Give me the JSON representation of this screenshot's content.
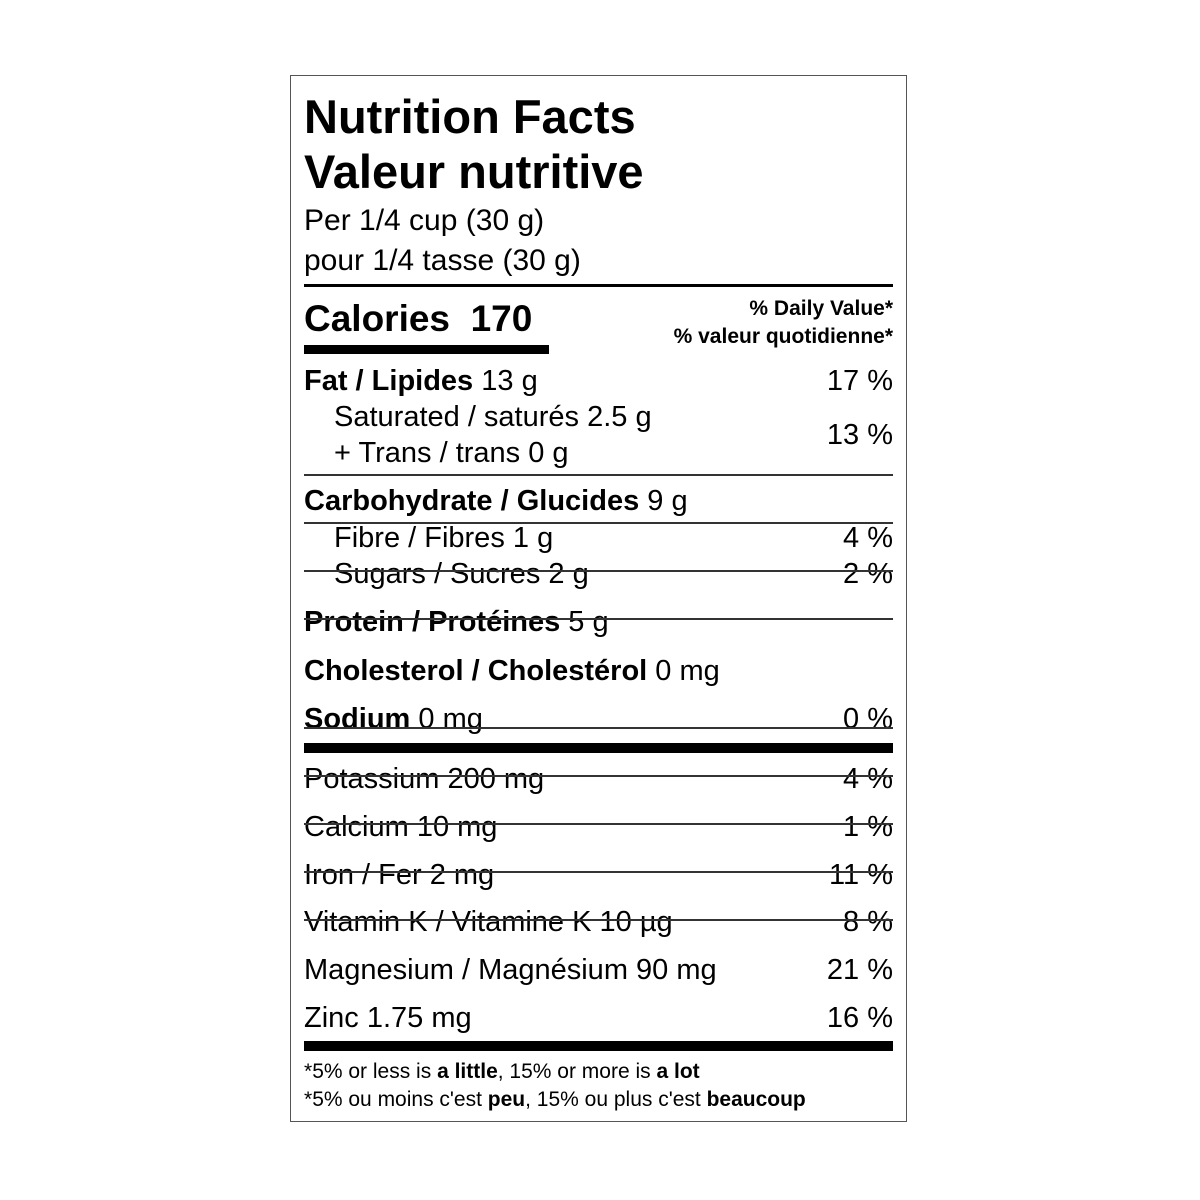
{
  "title_en": "Nutrition Facts",
  "title_fr": "Valeur nutritive",
  "serving_en": "Per 1/4 cup (30 g)",
  "serving_fr": "pour 1/4 tasse (30 g)",
  "calories_label": "Calories",
  "calories_value": "170",
  "dv_header_en": "% Daily Value*",
  "dv_header_fr": "% valeur quotidienne*",
  "fat": {
    "label": "Fat / Lipides",
    "amount": "13 g",
    "dv": "17 %"
  },
  "saturated": {
    "label": "Saturated / saturés 2.5 g"
  },
  "trans": {
    "label": "+ Trans / trans 0 g"
  },
  "sat_trans_dv": "13 %",
  "rows": [
    {
      "label": "Carbohydrate / Glucides",
      "amount": "9 g",
      "dv": "",
      "bold": true,
      "indent": false
    },
    {
      "label": "Fibre / Fibres",
      "amount": "1 g",
      "dv": "4 %",
      "bold": false,
      "indent": true
    },
    {
      "label": "Sugars / Sucres",
      "amount": "2 g",
      "dv": "2 %",
      "bold": false,
      "indent": true
    },
    {
      "label": "Protein / Protéines",
      "amount": "5 g",
      "dv": "",
      "bold": true,
      "indent": false
    },
    {
      "label": "Cholesterol / Cholestérol",
      "amount": "0 mg",
      "dv": "",
      "bold": true,
      "indent": false
    },
    {
      "label": "Sodium",
      "amount": "0 mg",
      "dv": "0 %",
      "bold": true,
      "indent": false
    },
    {
      "label": "Potassium",
      "amount": "200 mg",
      "dv": "4 %",
      "bold": false,
      "indent": false
    },
    {
      "label": "Calcium",
      "amount": "10 mg",
      "dv": "1 %",
      "bold": false,
      "indent": false
    },
    {
      "label": "Iron / Fer",
      "amount": "2 mg",
      "dv": "11 %",
      "bold": false,
      "indent": false
    },
    {
      "label": "Vitamin K / Vitamine K",
      "amount": "10 µg",
      "dv": "8 %",
      "bold": false,
      "indent": false
    },
    {
      "label": "Magnesium / Magnésium",
      "amount": "90 mg",
      "dv": "21 %",
      "bold": false,
      "indent": false
    },
    {
      "label": "Zinc",
      "amount": "1.75 mg",
      "dv": "16 %",
      "bold": false,
      "indent": false
    }
  ],
  "footnote_en": {
    "a": "5% or less is ",
    "b": "a little",
    "c": ", 15% or more is ",
    "d": "a lot"
  },
  "footnote_fr": {
    "a": "5% ou moins c'est ",
    "b": "peu",
    "c": ", 15% ou plus c'est ",
    "d": "beaucoup"
  },
  "footnote_star": "*"
}
